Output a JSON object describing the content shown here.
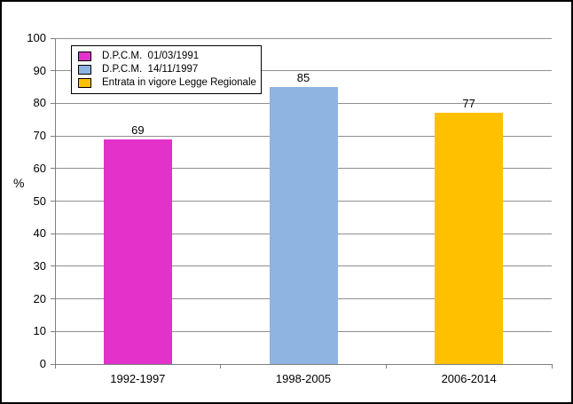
{
  "chart_data": {
    "type": "bar",
    "title": "",
    "xlabel": "",
    "ylabel": "%",
    "ylim": [
      0,
      100
    ],
    "ytick_step": 10,
    "grid": true,
    "categories": [
      "1992-1997",
      "1998-2005",
      "2006-2014"
    ],
    "values": [
      69,
      85,
      77
    ],
    "value_labels": [
      "69",
      "85",
      "77"
    ],
    "bar_colors": [
      "#e232c9",
      "#8eb4e2",
      "#ffc000"
    ],
    "legend": {
      "position": "top-left",
      "entries": [
        {
          "label": "D.P.C.M.  01/03/1991",
          "color": "#e232c9"
        },
        {
          "label": "D.P.C.M.  14/11/1997",
          "color": "#8eb4e2"
        },
        {
          "label": "Entrata in vigore Legge Regionale",
          "color": "#ffc000"
        }
      ]
    }
  },
  "colors": {
    "background": "#ffffff",
    "frame_border": "#000000",
    "gridline": "#909090",
    "axis": "#7f7f7f",
    "text": "#000000"
  }
}
